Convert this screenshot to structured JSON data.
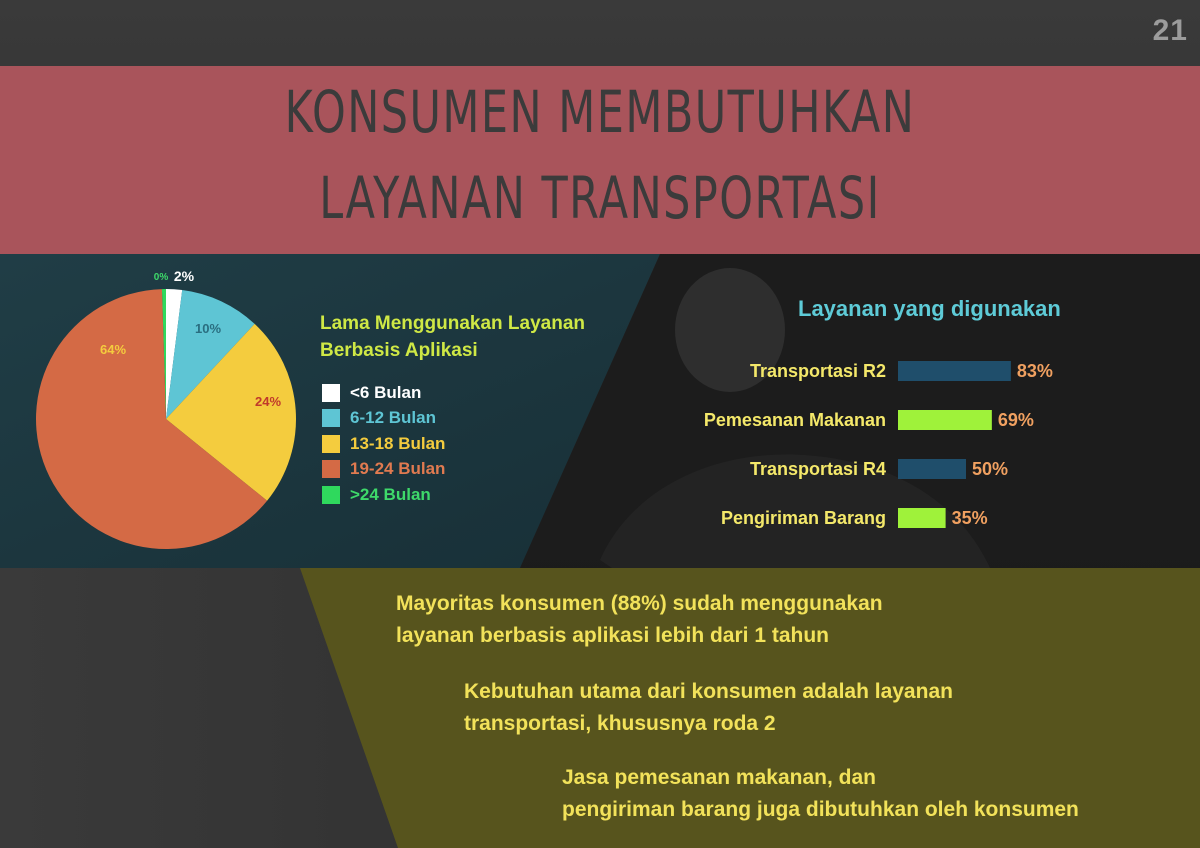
{
  "page_number": "21",
  "title": {
    "line1": "KONSUMEN MEMBUTUHKAN",
    "line2": "LAYANAN TRANSPORTASI"
  },
  "colors": {
    "title_band": "#a9545b",
    "accent_yellow": "#cfe845",
    "accent_cyan": "#5ecbd7",
    "message_band": "#5a561c"
  },
  "chart_data": [
    {
      "type": "pie",
      "title": "Lama Menggunakan Layanan Berbasis Aplikasi",
      "slices": [
        {
          "label": "<6 Bulan",
          "value": 2,
          "display": "2%",
          "color": "#ffffff",
          "label_color": "#ffffff"
        },
        {
          "label": "6-12 Bulan",
          "value": 10,
          "display": "10%",
          "color": "#5ec5d4",
          "label_color": "#5ec5d4"
        },
        {
          "label": "13-18 Bulan",
          "value": 24,
          "display": "24%",
          "color": "#f4cc3e",
          "label_color": "#f4cc3e"
        },
        {
          "label": "19-24 Bulan",
          "value": 64,
          "display": "64%",
          "color": "#d46a45",
          "label_color": "#e07a50"
        },
        {
          "label": ">24 Bulan",
          "value": 0.5,
          "display": "0%",
          "color": "#2fd95d",
          "label_color": "#3ed96a"
        }
      ],
      "legend_position": "right"
    },
    {
      "type": "bar",
      "orientation": "horizontal",
      "title": "Layanan yang digunakan",
      "categories": [
        "Transportasi R2",
        "Pemesanan Makanan",
        "Transportasi R4",
        "Pengiriman Barang"
      ],
      "values": [
        83,
        69,
        50,
        35
      ],
      "value_labels": [
        "83%",
        "69%",
        "50%",
        "35%"
      ],
      "colors": [
        "#1f4e6b",
        "#9ff23a",
        "#1f4e6b",
        "#9ff23a"
      ],
      "xlim": [
        0,
        100
      ]
    }
  ],
  "messages": [
    {
      "line1": "Mayoritas konsumen (88%) sudah  menggunakan",
      "line2": "layanan berbasis aplikasi lebih dari 1 tahun"
    },
    {
      "line1": "Kebutuhan utama dari konsumen adalah layanan",
      "line2": "transportasi, khususnya roda 2"
    },
    {
      "line1": "Jasa pemesanan makanan, dan",
      "line2": "pengiriman barang juga dibutuhkan oleh konsumen"
    }
  ]
}
